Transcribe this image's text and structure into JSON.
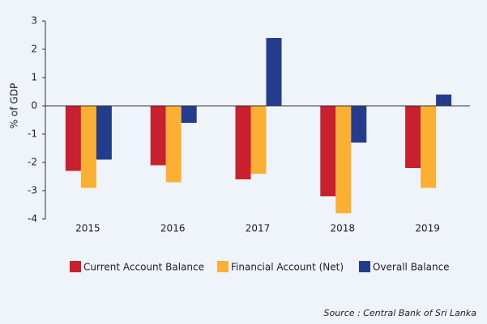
{
  "chart_data": {
    "type": "bar",
    "y_label": "% of GDP",
    "categories": [
      "2015",
      "2016",
      "2017",
      "2018",
      "2019"
    ],
    "series": [
      {
        "name": "Current Account Balance",
        "color": "#c8202f",
        "values": [
          -2.3,
          -2.1,
          -2.6,
          -3.2,
          -2.2
        ]
      },
      {
        "name": "Financial Account (Net)",
        "color": "#fbb034",
        "values": [
          -2.9,
          -2.7,
          -2.4,
          -3.8,
          -2.9
        ]
      },
      {
        "name": "Overall Balance",
        "color": "#233d8c",
        "values": [
          -1.9,
          -0.6,
          2.4,
          -1.3,
          0.4
        ]
      }
    ],
    "ylim": [
      -4,
      3
    ],
    "yticks": [
      -4,
      -3,
      -2,
      -1,
      0,
      1,
      2,
      3
    ],
    "source": "Source : Central Bank of Sri Lanka"
  }
}
